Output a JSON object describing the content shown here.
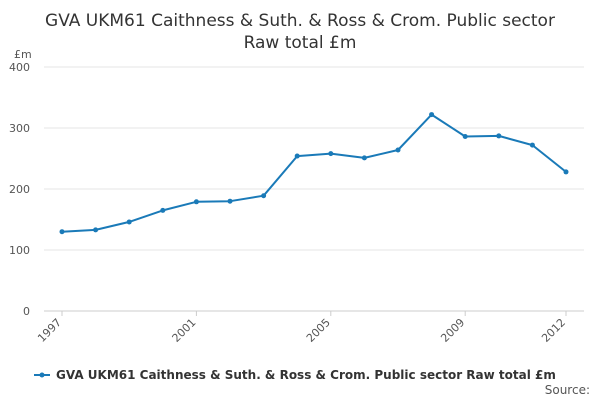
{
  "chart_data": {
    "type": "line",
    "title_lines": [
      "GVA UKM61 Caithness & Suth. & Ross & Crom. Public sector",
      "Raw total £m"
    ],
    "y_unit": "£m",
    "xlabel": "",
    "ylabel": "",
    "x": [
      1997,
      1998,
      1999,
      2000,
      2001,
      2002,
      2003,
      2004,
      2005,
      2006,
      2007,
      2008,
      2009,
      2010,
      2011,
      2012
    ],
    "x_tick_labels": [
      "1997",
      "2001",
      "2005",
      "2009",
      "2012"
    ],
    "y_ticks": [
      0,
      100,
      200,
      300,
      400
    ],
    "ylim": [
      0,
      400
    ],
    "series": [
      {
        "name": "GVA UKM61 Caithness & Suth. & Ross & Crom. Public sector Raw total £m",
        "color": "#1a7ab8",
        "values": [
          130,
          133,
          146,
          165,
          179,
          180,
          189,
          254,
          258,
          251,
          264,
          322,
          286,
          287,
          272,
          228
        ]
      }
    ],
    "grid": true,
    "legend_position": "bottom",
    "source_label": "Source:"
  }
}
